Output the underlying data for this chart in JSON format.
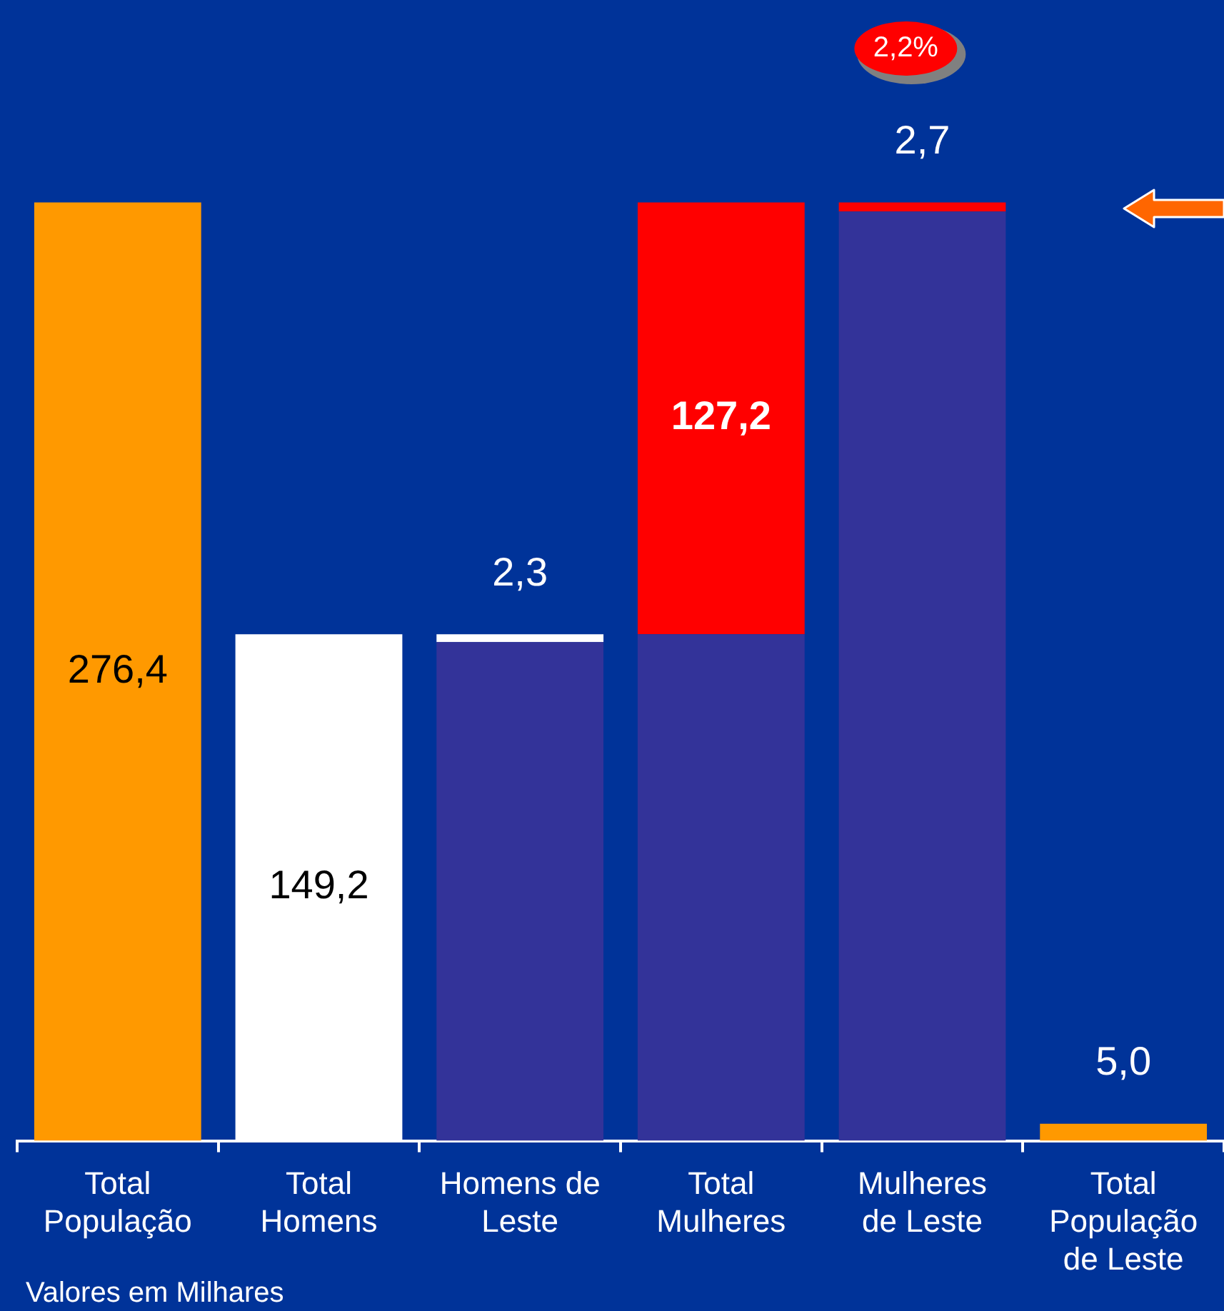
{
  "chart_data": {
    "type": "bar",
    "stacked": true,
    "categories": [
      "Total População",
      "Total Homens",
      "Homens de Leste",
      "Total Mulheres",
      "Mulheres de Leste",
      "Total População de Leste"
    ],
    "series": [
      {
        "color": "#333399",
        "values": [
          0,
          0,
          146.9,
          149.2,
          273.7,
          0
        ]
      },
      {
        "colors": [
          "#ff9900",
          "#ffffff",
          "#ffffff",
          "#ff0000",
          "#ff0000",
          "#ff9900"
        ],
        "values": [
          276.4,
          149.2,
          2.3,
          127.2,
          2.7,
          5.0
        ],
        "value_labels": [
          "276,4",
          "149,2",
          "2,3",
          "127,2",
          "2,7",
          "5,0"
        ]
      }
    ],
    "tick_labels": "x",
    "grid": false,
    "legend": false,
    "annotations": [
      "2,2%",
      "Valores em Milhares"
    ]
  }
}
